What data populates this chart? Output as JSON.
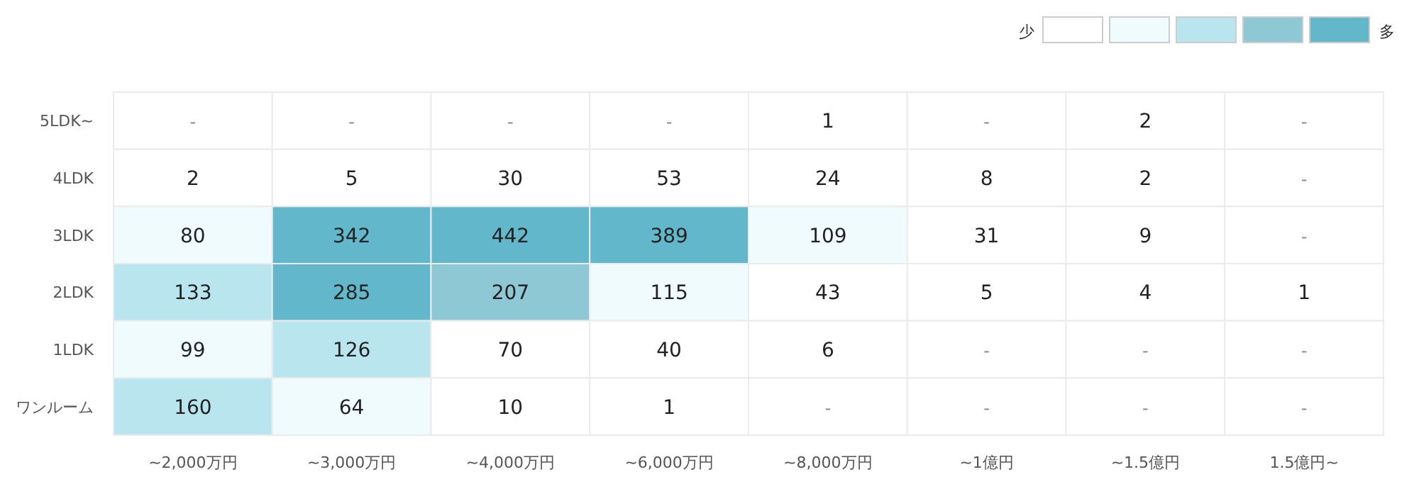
{
  "chart_data": {
    "type": "heatmap",
    "categories": [
      "~2,000万円",
      "~3,000万円",
      "~4,000万円",
      "~6,000万円",
      "~8,000万円",
      "~1億円",
      "~1.5億円",
      "1.5億円~"
    ],
    "y_categories": [
      "5LDK~",
      "4LDK",
      "3LDK",
      "2LDK",
      "1LDK",
      "ワンルーム"
    ],
    "cells": [
      [
        null,
        null,
        null,
        null,
        1,
        null,
        2,
        null
      ],
      [
        2,
        5,
        30,
        53,
        24,
        8,
        2,
        null
      ],
      [
        80,
        342,
        442,
        389,
        109,
        31,
        9,
        null
      ],
      [
        133,
        285,
        207,
        115,
        43,
        5,
        4,
        1
      ],
      [
        99,
        126,
        70,
        40,
        6,
        null,
        null,
        null
      ],
      [
        160,
        64,
        10,
        1,
        null,
        null,
        null,
        null
      ]
    ],
    "cell_labels": [
      [
        "-",
        "-",
        "-",
        "-",
        "1",
        "-",
        "2",
        "-"
      ],
      [
        "2",
        "5",
        "30",
        "53",
        "24",
        "8",
        "2",
        "-"
      ],
      [
        "80",
        "342",
        "442",
        "389",
        "109",
        "31",
        "9",
        "-"
      ],
      [
        "133",
        "285",
        "207",
        "115",
        "43",
        "5",
        "4",
        "1"
      ],
      [
        "99",
        "126",
        "70",
        "40",
        "6",
        "-",
        "-",
        "-"
      ],
      [
        "160",
        "64",
        "10",
        "1",
        "-",
        "-",
        "-",
        "-"
      ]
    ],
    "colors": [
      [
        "#ffffff",
        "#ffffff",
        "#ffffff",
        "#ffffff",
        "#ffffff",
        "#ffffff",
        "#ffffff",
        "#ffffff"
      ],
      [
        "#ffffff",
        "#ffffff",
        "#ffffff",
        "#ffffff",
        "#ffffff",
        "#ffffff",
        "#ffffff",
        "#ffffff"
      ],
      [
        "#f0fbfd",
        "#62b7ca",
        "#62b7ca",
        "#62b7ca",
        "#f0fbfd",
        "#ffffff",
        "#ffffff",
        "#ffffff"
      ],
      [
        "#b9e6ee",
        "#62b7ca",
        "#8ec8d4",
        "#f0fbfd",
        "#ffffff",
        "#ffffff",
        "#ffffff",
        "#ffffff"
      ],
      [
        "#f0fbfd",
        "#b9e6ee",
        "#ffffff",
        "#ffffff",
        "#ffffff",
        "#ffffff",
        "#ffffff",
        "#ffffff"
      ],
      [
        "#b9e6ee",
        "#f0fbfd",
        "#ffffff",
        "#ffffff",
        "#ffffff",
        "#ffffff",
        "#ffffff",
        "#ffffff"
      ]
    ],
    "annotations": [
      "少",
      "多"
    ]
  }
}
